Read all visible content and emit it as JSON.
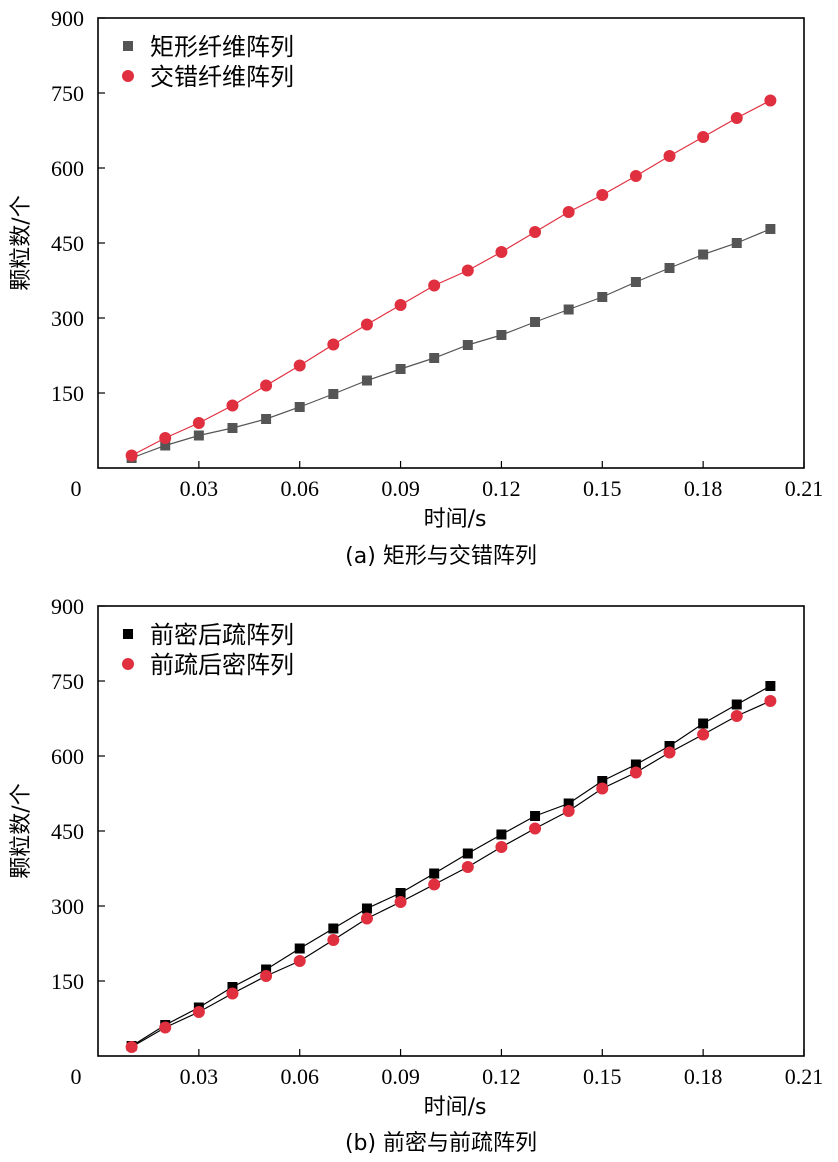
{
  "chart_data": [
    {
      "type": "line",
      "caption": "(a) 矩形与交错阵列",
      "xlabel": "时间/s",
      "ylabel": "颗粒数/个",
      "xlim": [
        0,
        0.21
      ],
      "ylim": [
        0,
        900
      ],
      "x_ticks": [
        "0",
        "0.03",
        "0.06",
        "0.09",
        "0.12",
        "0.15",
        "0.18",
        "0.21"
      ],
      "y_ticks": [
        "150",
        "300",
        "450",
        "600",
        "750",
        "900"
      ],
      "legend_position": "top-left",
      "x": [
        0.01,
        0.02,
        0.03,
        0.04,
        0.05,
        0.06,
        0.07,
        0.08,
        0.09,
        0.1,
        0.11,
        0.12,
        0.13,
        0.14,
        0.15,
        0.16,
        0.17,
        0.18,
        0.19,
        0.2
      ],
      "series": [
        {
          "name": "矩形纤维阵列",
          "marker": "square",
          "color": "#555555",
          "line_color": "#555555",
          "values": [
            20,
            45,
            65,
            80,
            98,
            122,
            148,
            175,
            198,
            220,
            246,
            266,
            292,
            317,
            342,
            372,
            400,
            427,
            450,
            478
          ]
        },
        {
          "name": "交错纤维阵列",
          "marker": "circle",
          "color": "#e03040",
          "line_color": "#e03040",
          "values": [
            25,
            60,
            90,
            125,
            165,
            205,
            247,
            287,
            326,
            365,
            395,
            432,
            472,
            512,
            546,
            584,
            624,
            662,
            700,
            735
          ]
        }
      ]
    },
    {
      "type": "line",
      "caption": "(b) 前密与前疏阵列",
      "xlabel": "时间/s",
      "ylabel": "颗粒数/个",
      "xlim": [
        0,
        0.21
      ],
      "ylim": [
        0,
        900
      ],
      "x_ticks": [
        "0",
        "0.03",
        "0.06",
        "0.09",
        "0.12",
        "0.15",
        "0.18",
        "0.21"
      ],
      "y_ticks": [
        "150",
        "300",
        "450",
        "600",
        "750",
        "900"
      ],
      "legend_position": "top-left",
      "x": [
        0.01,
        0.02,
        0.03,
        0.04,
        0.05,
        0.06,
        0.07,
        0.08,
        0.09,
        0.1,
        0.11,
        0.12,
        0.13,
        0.14,
        0.15,
        0.16,
        0.17,
        0.18,
        0.19,
        0.2
      ],
      "series": [
        {
          "name": "前密后疏阵列",
          "marker": "square",
          "color": "#000000",
          "line_color": "#000000",
          "values": [
            20,
            62,
            97,
            138,
            173,
            215,
            255,
            295,
            326,
            365,
            405,
            443,
            480,
            505,
            550,
            583,
            620,
            665,
            703,
            740
          ]
        },
        {
          "name": "前疏后密阵列",
          "marker": "circle",
          "color": "#e03040",
          "line_color": "#000000",
          "values": [
            18,
            57,
            88,
            125,
            160,
            190,
            232,
            275,
            308,
            343,
            378,
            418,
            455,
            490,
            535,
            567,
            607,
            643,
            680,
            710
          ]
        }
      ]
    }
  ]
}
